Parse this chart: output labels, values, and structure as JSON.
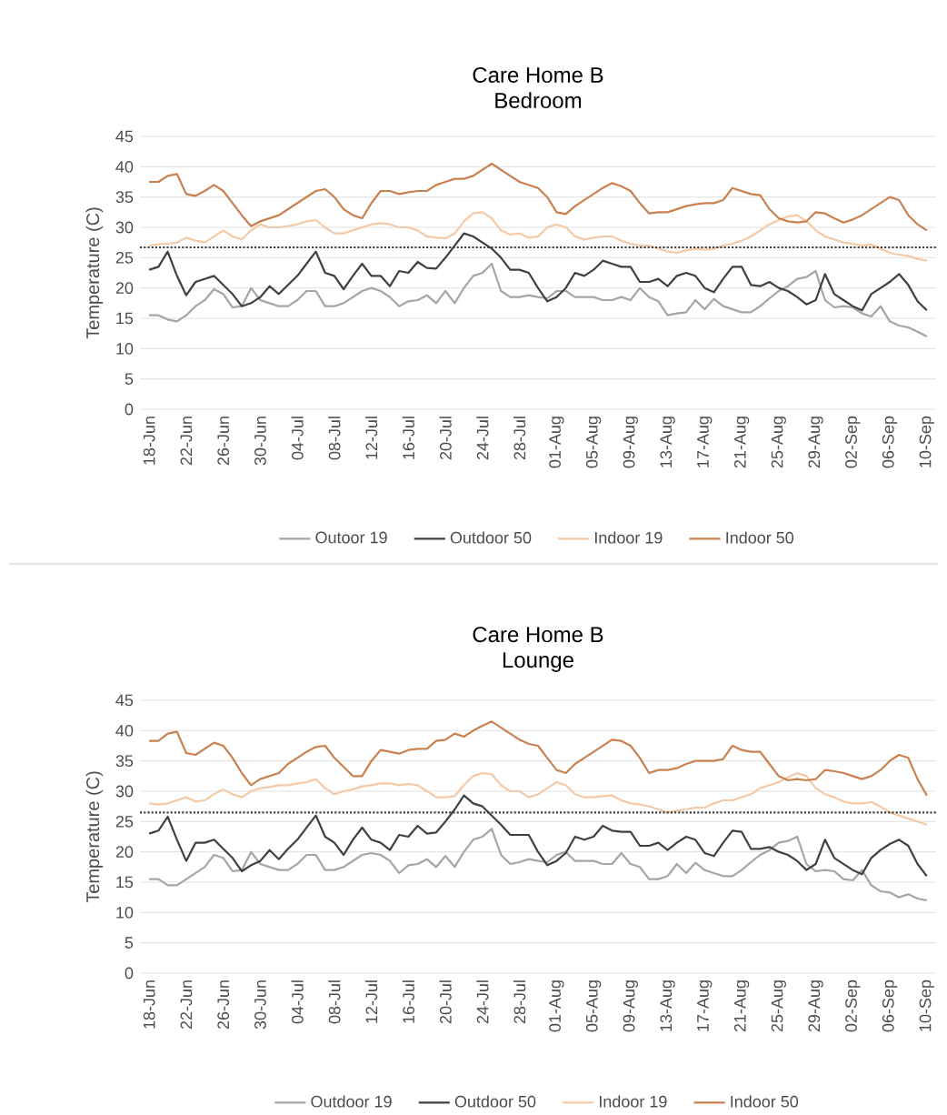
{
  "chart_data": [
    {
      "type": "line",
      "title": "Care Home B",
      "subtitle": "Bedroom",
      "ylabel": "Temperature (C)",
      "categories": [
        "18-Jun",
        null,
        null,
        null,
        "22-Jun",
        null,
        null,
        null,
        "26-Jun",
        null,
        null,
        null,
        "30-Jun",
        null,
        null,
        null,
        "04-Jul",
        null,
        null,
        null,
        "08-Jul",
        null,
        null,
        null,
        "12-Jul",
        null,
        null,
        null,
        "16-Jul",
        null,
        null,
        null,
        "20-Jul",
        null,
        null,
        null,
        "24-Jul",
        null,
        null,
        null,
        "28-Jul",
        null,
        null,
        null,
        "01-Aug",
        null,
        null,
        null,
        "05-Aug",
        null,
        null,
        null,
        "09-Aug",
        null,
        null,
        null,
        "13-Aug",
        null,
        null,
        null,
        "17-Aug",
        null,
        null,
        null,
        "21-Aug",
        null,
        null,
        null,
        "25-Aug",
        null,
        null,
        null,
        "29-Aug",
        null,
        null,
        null,
        "02-Sep",
        null,
        null,
        null,
        "06-Sep",
        null,
        null,
        null,
        "10-Sep"
      ],
      "ylim": [
        0,
        45
      ],
      "yticks": [
        0,
        5,
        10,
        15,
        20,
        25,
        30,
        35,
        40,
        45
      ],
      "grid": "y",
      "legend": "bottom",
      "ref_lines": [
        {
          "axis": "y",
          "value": 26.7,
          "line_style": "dotted",
          "color": "#404040"
        }
      ],
      "series": [
        {
          "name": "Outoor 19",
          "color": "#a5a5a5",
          "values": [
            15.5,
            15.5,
            14.8,
            14.5,
            15.5,
            17,
            18,
            19.8,
            19,
            16.8,
            17,
            20,
            18,
            17.5,
            17,
            17,
            18,
            19.5,
            19.5,
            17,
            17,
            17.5,
            18.5,
            19.5,
            20,
            19.5,
            18.5,
            17,
            17.8,
            18,
            18.8,
            17.5,
            19.5,
            17.5,
            20,
            22,
            22.5,
            24,
            19.5,
            18.5,
            18.5,
            18.8,
            18.5,
            18.3,
            19.5,
            19.5,
            18.5,
            18.5,
            18.5,
            18,
            18,
            18.5,
            18,
            20,
            18.5,
            17.8,
            15.5,
            15.8,
            16,
            18,
            16.5,
            18.2,
            17,
            16.5,
            16,
            16,
            17,
            18.3,
            19.5,
            20.3,
            21.5,
            21.8,
            22.8,
            18,
            16.8,
            17,
            16.8,
            15.8,
            15.3,
            17,
            14.5,
            13.8,
            13.5,
            12.8,
            12
          ]
        },
        {
          "name": "Outdoor 50",
          "color": "#404040",
          "values": [
            23,
            23.5,
            26,
            22,
            18.8,
            21,
            21.5,
            22,
            20.5,
            19,
            17,
            17.5,
            18.5,
            20.3,
            19,
            20.5,
            22,
            24,
            26,
            22.5,
            22,
            19.8,
            22,
            24,
            22,
            22,
            20.3,
            22.8,
            22.5,
            24.3,
            23.3,
            23.2,
            25,
            27,
            29,
            28.5,
            27.5,
            26.5,
            25,
            23,
            23,
            22.5,
            20,
            17.8,
            18.5,
            20,
            22.5,
            22,
            23,
            24.5,
            24,
            23.5,
            23.5,
            21,
            21,
            21.5,
            20.3,
            22,
            22.5,
            22,
            20,
            19.3,
            21.5,
            23.5,
            23.5,
            20.5,
            20.3,
            21,
            20,
            19.5,
            18.5,
            17.3,
            18,
            22.3,
            19,
            18,
            17,
            16.3,
            19,
            20,
            21,
            22.3,
            20.5,
            17.8,
            16.3
          ]
        },
        {
          "name": "Indoor 19",
          "color": "#f4c9a6",
          "values": [
            27,
            27.2,
            27.3,
            27.5,
            28.3,
            27.8,
            27.5,
            28.5,
            29.5,
            28.5,
            28,
            29.5,
            30.5,
            30,
            30,
            30.2,
            30.5,
            31,
            31.2,
            30,
            29,
            29,
            29.5,
            30,
            30.5,
            30.7,
            30.5,
            30,
            30,
            29.5,
            28.5,
            28.3,
            28.2,
            29,
            31,
            32.3,
            32.5,
            31.5,
            29.5,
            28.8,
            29,
            28.3,
            28.5,
            30,
            30.5,
            30,
            28.5,
            28,
            28.3,
            28.5,
            28.5,
            27.8,
            27.3,
            27,
            27,
            26.5,
            26,
            25.8,
            26.2,
            26.5,
            26.3,
            26.5,
            27,
            27.3,
            27.8,
            28.5,
            29.5,
            30.5,
            31.2,
            31.8,
            32,
            31,
            29.5,
            28.5,
            28,
            27.5,
            27.3,
            27,
            27.2,
            26.5,
            25.8,
            25.5,
            25.3,
            24.8,
            24.5
          ]
        },
        {
          "name": "Indoor 50",
          "color": "#c9814f",
          "values": [
            37.5,
            37.5,
            38.5,
            38.8,
            35.5,
            35.2,
            36,
            37,
            36,
            34,
            32,
            30.2,
            31,
            31.5,
            32,
            33,
            34,
            35,
            36,
            36.3,
            35,
            33,
            32,
            31.5,
            34,
            36,
            36,
            35.5,
            35.8,
            36,
            36,
            37,
            37.5,
            38,
            38,
            38.5,
            39.5,
            40.5,
            39.5,
            38.5,
            37.5,
            37,
            36.5,
            35,
            32.5,
            32.2,
            33.5,
            34.5,
            35.5,
            36.5,
            37.3,
            36.8,
            36,
            34,
            32.3,
            32.5,
            32.5,
            33,
            33.5,
            33.8,
            34,
            34,
            34.5,
            36.5,
            36,
            35.5,
            35.3,
            33,
            31.5,
            31,
            30.8,
            31,
            32.5,
            32.3,
            31.5,
            30.8,
            31.3,
            32,
            33,
            34,
            35,
            34.5,
            32,
            30.5,
            29.5
          ]
        }
      ]
    },
    {
      "type": "line",
      "title": "Care Home B",
      "subtitle": "Lounge",
      "ylabel": "Temperature (C)",
      "categories": [
        "18-Jun",
        null,
        null,
        null,
        "22-Jun",
        null,
        null,
        null,
        "26-Jun",
        null,
        null,
        null,
        "30-Jun",
        null,
        null,
        null,
        "04-Jul",
        null,
        null,
        null,
        "08-Jul",
        null,
        null,
        null,
        "12-Jul",
        null,
        null,
        null,
        "16-Jul",
        null,
        null,
        null,
        "20-Jul",
        null,
        null,
        null,
        "24-Jul",
        null,
        null,
        null,
        "28-Jul",
        null,
        null,
        null,
        "01-Aug",
        null,
        null,
        null,
        "05-Aug",
        null,
        null,
        null,
        "09-Aug",
        null,
        null,
        null,
        "13-Aug",
        null,
        null,
        null,
        "17-Aug",
        null,
        null,
        null,
        "21-Aug",
        null,
        null,
        null,
        "25-Aug",
        null,
        null,
        null,
        "29-Aug",
        null,
        null,
        null,
        "02-Sep",
        null,
        null,
        null,
        "06-Sep",
        null,
        null,
        null,
        "10-Sep"
      ],
      "ylim": [
        0,
        45
      ],
      "yticks": [
        0,
        5,
        10,
        15,
        20,
        25,
        30,
        35,
        40,
        45
      ],
      "grid": "y",
      "legend": "bottom",
      "ref_lines": [
        {
          "axis": "y",
          "value": 26.5,
          "line_style": "dotted",
          "color": "#404040"
        }
      ],
      "series": [
        {
          "name": "Outdoor 19",
          "color": "#a5a5a5",
          "values": [
            15.5,
            15.5,
            14.5,
            14.5,
            15.5,
            16.5,
            17.5,
            19.5,
            19,
            16.8,
            17,
            20,
            18,
            17.5,
            17,
            17,
            18,
            19.5,
            19.5,
            17,
            17,
            17.5,
            18.5,
            19.5,
            19.8,
            19.5,
            18.5,
            16.5,
            17.8,
            18,
            18.8,
            17.5,
            19.3,
            17.5,
            20,
            22,
            22.5,
            23.8,
            19.5,
            18,
            18.3,
            18.8,
            18.5,
            18.3,
            19.5,
            20,
            18.5,
            18.5,
            18.5,
            18,
            18,
            19.8,
            18,
            17.5,
            15.5,
            15.5,
            16,
            18,
            16.5,
            18.2,
            17,
            16.5,
            16,
            16,
            17,
            18.3,
            19.5,
            20.3,
            21.5,
            21.8,
            22.5,
            18,
            16.8,
            17,
            16.8,
            15.5,
            15.3,
            17,
            14.5,
            13.5,
            13.3,
            12.5,
            13,
            12.3,
            12
          ]
        },
        {
          "name": "Outdoor 50",
          "color": "#404040",
          "values": [
            23,
            23.5,
            25.8,
            22,
            18.5,
            21.5,
            21.5,
            22,
            20.5,
            19,
            16.8,
            17.8,
            18.5,
            20.3,
            18.8,
            20.5,
            22,
            24,
            26,
            22.5,
            21.5,
            19.5,
            22,
            24,
            22,
            21.5,
            20.3,
            22.8,
            22.5,
            24.3,
            23,
            23.2,
            25,
            27,
            29.3,
            28,
            27.5,
            26,
            24.5,
            22.8,
            22.8,
            22.8,
            20,
            17.8,
            18.5,
            19.8,
            22.5,
            22,
            22.5,
            24.3,
            23.5,
            23.3,
            23.3,
            21,
            21,
            21.5,
            20.3,
            21.5,
            22.5,
            22,
            19.8,
            19.3,
            21.5,
            23.5,
            23.3,
            20.5,
            20.5,
            20.8,
            20,
            19.5,
            18.5,
            17,
            18,
            22,
            19,
            18,
            17,
            16.3,
            19,
            20.3,
            21.3,
            22,
            21,
            18,
            16
          ]
        },
        {
          "name": "Indoor 19",
          "color": "#f4c9a6",
          "values": [
            28,
            27.8,
            28,
            28.5,
            29,
            28.3,
            28.5,
            29.5,
            30.3,
            29.5,
            29,
            30,
            30.5,
            30.7,
            31,
            31,
            31.3,
            31.5,
            32,
            30.5,
            29.5,
            30,
            30.3,
            30.8,
            31,
            31.3,
            31.3,
            31,
            31.2,
            31,
            30,
            29,
            29,
            29.2,
            31,
            32.5,
            33,
            32.8,
            31,
            30,
            30,
            29,
            29.5,
            30.5,
            31.5,
            31,
            29.5,
            29,
            29,
            29.2,
            29.3,
            28.5,
            28,
            27.8,
            27.5,
            27,
            26.5,
            26.8,
            27,
            27.3,
            27.3,
            28,
            28.5,
            28.5,
            29,
            29.5,
            30.5,
            31,
            31.5,
            32.3,
            33,
            32.5,
            30.5,
            29.5,
            29,
            28.3,
            28,
            28,
            28.2,
            27.5,
            26.5,
            26,
            25.5,
            25,
            24.5
          ]
        },
        {
          "name": "Indoor 50",
          "color": "#c9814f",
          "values": [
            38.3,
            38.3,
            39.5,
            39.8,
            36.3,
            36,
            37,
            38,
            37.5,
            35.5,
            33,
            31,
            32,
            32.5,
            33,
            34.5,
            35.5,
            36.5,
            37.3,
            37.5,
            35.5,
            34,
            32.5,
            32.5,
            35,
            36.8,
            36.5,
            36.2,
            36.8,
            37,
            37,
            38.3,
            38.5,
            39.5,
            39,
            40,
            40.8,
            41.5,
            40.5,
            39.5,
            38.5,
            37.8,
            37.5,
            35.5,
            33.5,
            33,
            34.5,
            35.5,
            36.5,
            37.5,
            38.5,
            38.3,
            37.5,
            35.5,
            33,
            33.5,
            33.5,
            33.8,
            34.5,
            35,
            35,
            35,
            35.3,
            37.5,
            36.8,
            36.5,
            36.5,
            34.5,
            32.5,
            31.8,
            32,
            31.8,
            32,
            33.5,
            33.3,
            33,
            32.5,
            32,
            32.5,
            33.5,
            35,
            36,
            35.5,
            32,
            29.3
          ]
        }
      ]
    }
  ]
}
